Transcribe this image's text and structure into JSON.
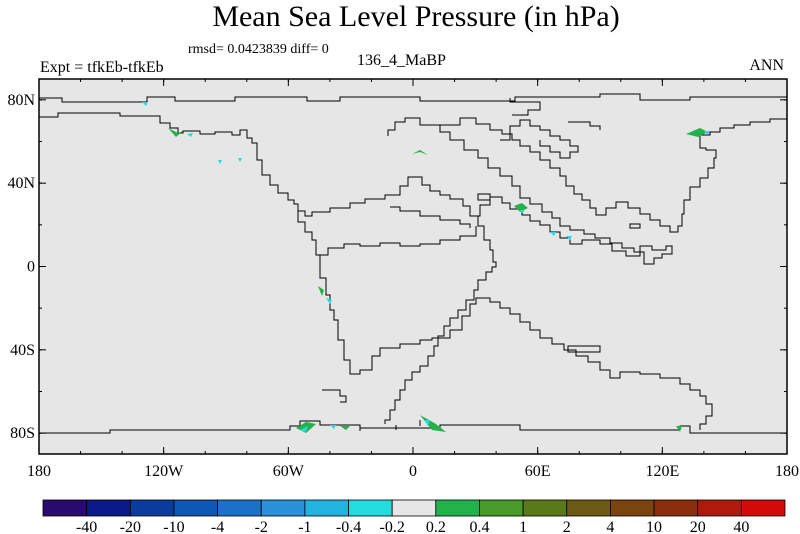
{
  "header": {
    "title": "Mean Sea Level Pressure (in hPa)",
    "stats": "rmsd= 0.0423839 diff= 0",
    "left_label": "Expt = tfkEb-tfkEb",
    "center_label": "136_4_MaBP",
    "right_label": "ANN"
  },
  "chart_data": {
    "type": "heatmap",
    "map_projection": "cylindrical-equidistant",
    "field_value_everywhere_bin": "-0.2 to 0.2",
    "background_fill": "#e6e6e6",
    "x_ticks": [
      "180",
      "120W",
      "60W",
      "0",
      "60E",
      "120E",
      "180"
    ],
    "y_ticks": [
      "80N",
      "40N",
      "0",
      "40S",
      "80S"
    ],
    "xlim": [
      -180,
      180
    ],
    "ylim": [
      -90,
      90
    ],
    "colorbar": {
      "colors": [
        "#2a0a6e",
        "#0b1a8a",
        "#0a3c9e",
        "#0b57b2",
        "#1a72c8",
        "#2a90d8",
        "#22b4e0",
        "#22dce0",
        "#e6e6e6",
        "#22b24c",
        "#4a9a2a",
        "#5a7a1a",
        "#6a5a14",
        "#7a4410",
        "#8a2e0c",
        "#b01a0a",
        "#d40a0a"
      ],
      "labels": [
        "-40",
        "-20",
        "-10",
        "-4",
        "-2",
        "-1",
        "-0.4",
        "-0.2",
        "0.2",
        "0.4",
        "1",
        "2",
        "4",
        "10",
        "20",
        "40"
      ]
    }
  }
}
